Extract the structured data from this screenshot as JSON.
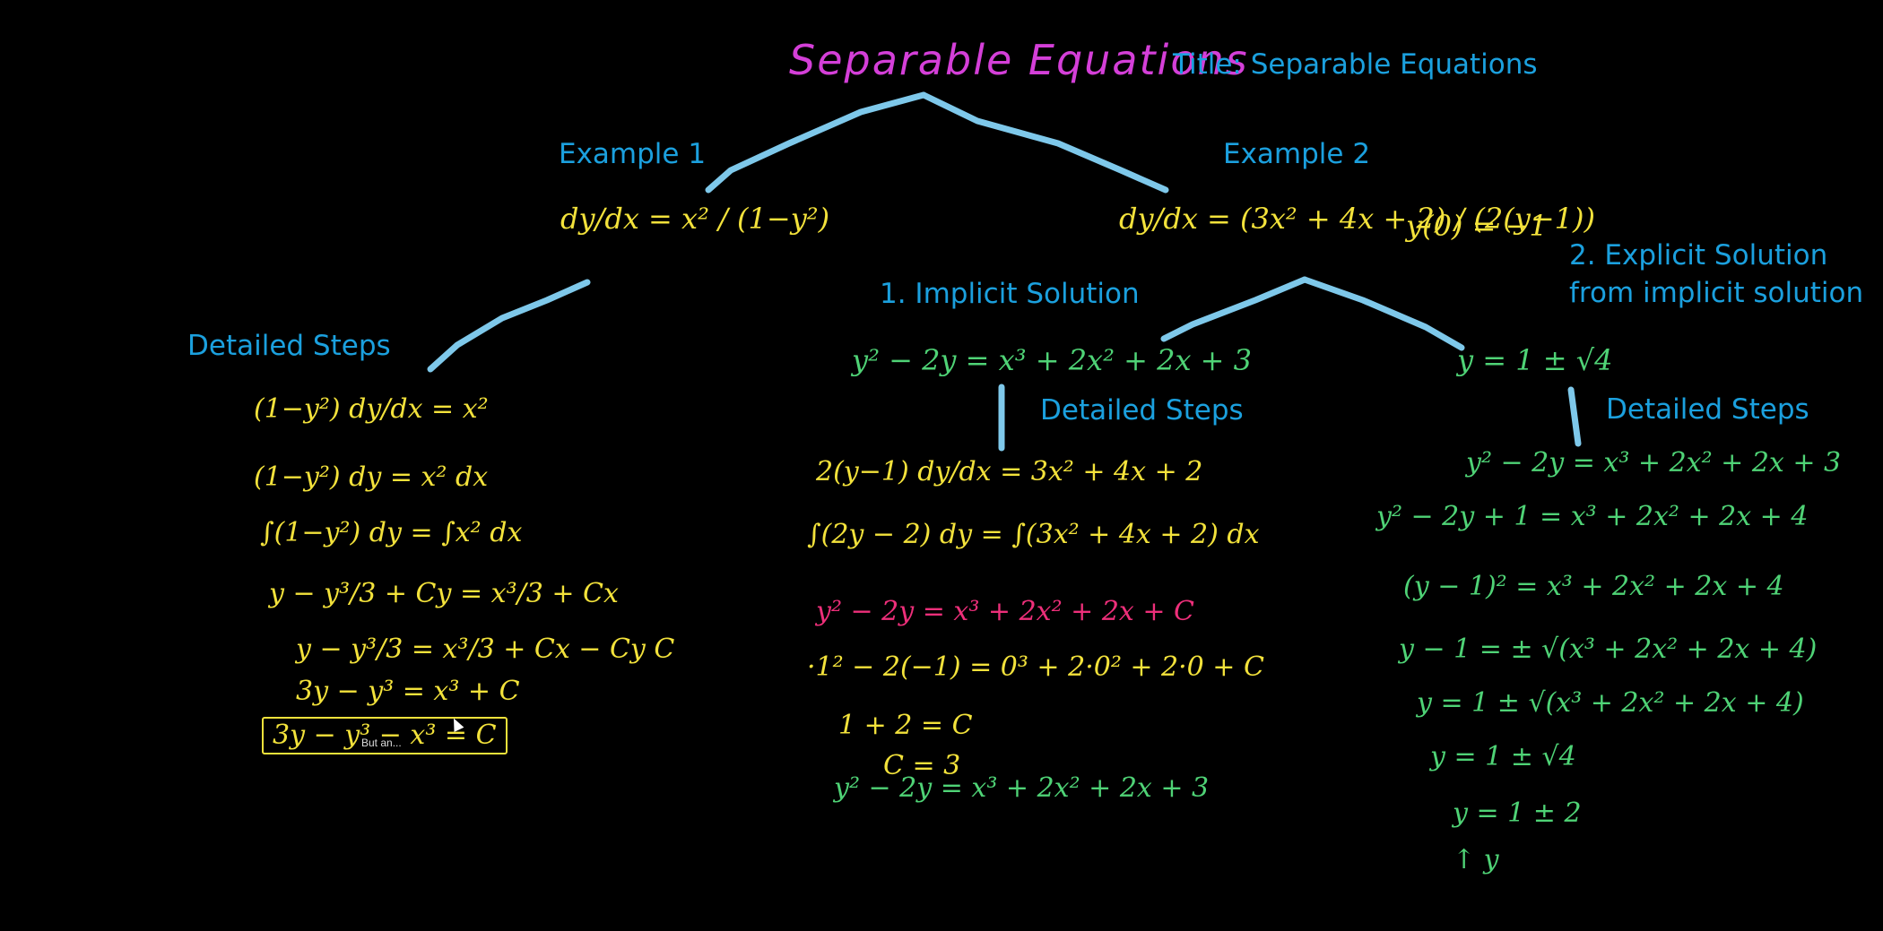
{
  "title_handwritten": "Separable Equations",
  "labels": {
    "title": "Title: Separable Equations",
    "example1": "Example 1",
    "example2": "Example 2",
    "detailed_steps_1": "Detailed Steps",
    "implicit": "1. Implicit Solution",
    "detailed_steps_2": "Detailed Steps",
    "explicit_line1": "2. Explicit Solution",
    "explicit_line2": "from implicit solution",
    "detailed_steps_3": "Detailed Steps"
  },
  "equations": {
    "ex1": "dy/dx = x² / (1−y²)",
    "ex2": "dy/dx = (3x² + 4x + 2) / (2(y−1))",
    "ex2_initial": "y(0) = −1",
    "implicit_result": "y² − 2y = x³ + 2x² + 2x + 3",
    "explicit_result": "y = 1 ± √4"
  },
  "steps_ex1": [
    "(1−y²) dy/dx = x²",
    "(1−y²) dy = x² dx",
    "∫(1−y²) dy = ∫x² dx",
    "y − y³/3 + Cy = x³/3 + Cx",
    "y − y³/3 = x³/3 + Cx − Cy   C",
    "3y − y³ = x³ + C",
    "3y − y³ − x³ = C"
  ],
  "steps_ex1_colors": [
    "yl",
    "yl",
    "yl",
    "yl",
    "yl",
    "yl",
    "yl"
  ],
  "steps_implicit": [
    "2(y−1) dy/dx = 3x² + 4x + 2",
    "∫(2y − 2) dy = ∫(3x² + 4x + 2) dx",
    "y² − 2y = x³ + 2x² + 2x + C",
    "·1² − 2(−1) = 0³ + 2·0² + 2·0 + C",
    "1 + 2 = C",
    "C = 3",
    "y² − 2y = x³ + 2x² + 2x + 3"
  ],
  "steps_explicit": [
    "y² − 2y = x³ + 2x² + 2x + 3",
    "y² − 2y + 1 = x³ + 2x² + 2x + 4",
    "(y − 1)² = x³ + 2x² + 2x + 4",
    "y − 1 = ± √(x³ + 2x² + 2x + 4)",
    "y = 1 ± √(x³ + 2x² + 2x + 4)",
    "y = 1 ± √4",
    "y = 1 ± 2",
    "↑ y"
  ],
  "tooltip": "But an...",
  "colors": {
    "background": "#000000",
    "label_blue": "#1ba0de",
    "connector": "#7ec8ea",
    "title_magenta": "#d43fd8",
    "yellow": "#f3e23b",
    "green": "#4fd376",
    "magenta_red": "#ee2f7a"
  }
}
